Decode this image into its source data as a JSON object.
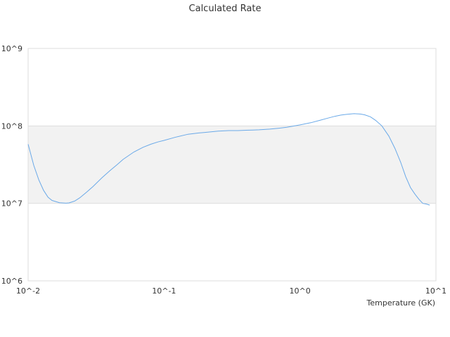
{
  "chart_data": {
    "type": "line",
    "title": "Calculated Rate",
    "xlabel": "Temperature (GK)",
    "ylabel": "",
    "x_scale": "log",
    "y_scale": "log",
    "xlim": [
      0.01,
      10
    ],
    "ylim": [
      1000000,
      1000000000
    ],
    "x_ticks": [
      "10^-2",
      "10^-1",
      "10^0",
      "10^1"
    ],
    "y_ticks": [
      "10^6",
      "10^7",
      "10^8",
      "10^9"
    ],
    "grid": true,
    "legend": "none",
    "colors": {
      "series": "#6aa9e8",
      "band": "#f2f2f2",
      "grid": "#dddddd",
      "text": "#333333"
    },
    "series": [
      {
        "x": [
          0.01,
          0.011,
          0.012,
          0.013,
          0.014,
          0.015,
          0.017,
          0.019,
          0.02,
          0.022,
          0.024,
          0.027,
          0.03,
          0.035,
          0.04,
          0.045,
          0.05,
          0.06,
          0.07,
          0.08,
          0.09,
          0.1,
          0.12,
          0.15,
          0.18,
          0.2,
          0.25,
          0.3,
          0.35,
          0.4,
          0.45,
          0.5,
          0.6,
          0.7,
          0.8,
          1.0,
          1.2,
          1.4,
          1.6,
          1.8,
          2.0,
          2.2,
          2.5,
          2.8,
          3.0,
          3.3,
          3.6,
          4.0,
          4.5,
          5.0,
          5.5,
          6.0,
          6.5,
          7.0,
          7.5,
          8.0,
          8.5,
          9.0
        ],
        "y": [
          58000000,
          31000000,
          20000000,
          14700000,
          12000000,
          10900000,
          10200000,
          10050000,
          10150000,
          10700000,
          11800000,
          14000000,
          16500000,
          21500000,
          26500000,
          31500000,
          37000000,
          46000000,
          53000000,
          58000000,
          62000000,
          65000000,
          71000000,
          78000000,
          81000000,
          82500000,
          85500000,
          87000000,
          87000000,
          88000000,
          88500000,
          89000000,
          91000000,
          93500000,
          96000000,
          103000000,
          110000000,
          118000000,
          126000000,
          133000000,
          138000000,
          141000000,
          144000000,
          142000000,
          139000000,
          131000000,
          118000000,
          100000000,
          74000000,
          51000000,
          34000000,
          22000000,
          16000000,
          13200000,
          11300000,
          10000000,
          9800000,
          9500000
        ]
      }
    ]
  }
}
